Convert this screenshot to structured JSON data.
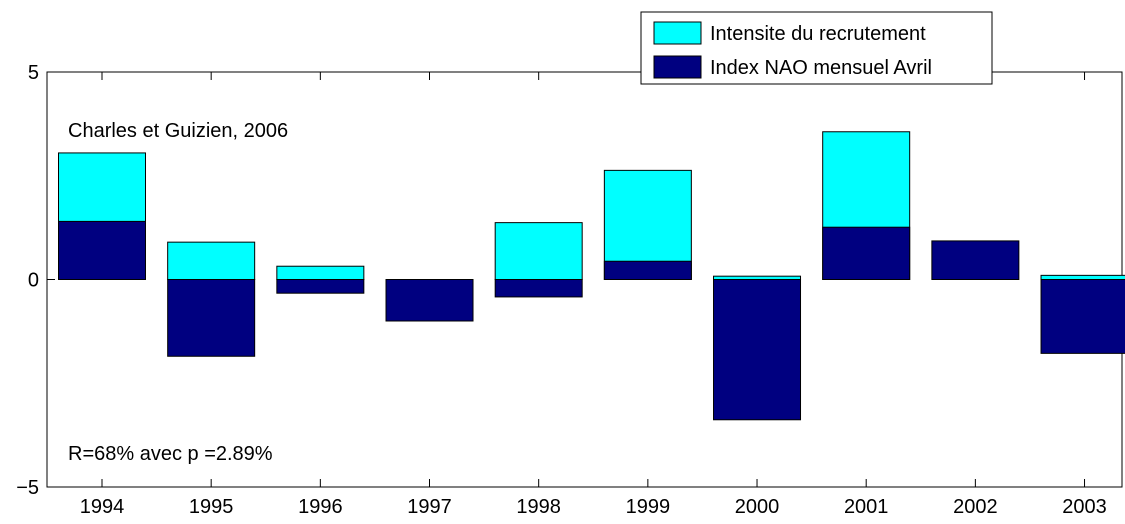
{
  "chart_data": {
    "type": "bar",
    "categories": [
      "1994",
      "1995",
      "1996",
      "1997",
      "1998",
      "1999",
      "2000",
      "2001",
      "2002",
      "2003"
    ],
    "series": [
      {
        "name": "Intensite du recrutement",
        "color": "#00ffff",
        "values": [
          3.05,
          0.9,
          0.32,
          0.0,
          1.37,
          2.63,
          0.08,
          3.56,
          0.0,
          0.1
        ]
      },
      {
        "name": "Index NAO mensuel Avril",
        "color": "#000080",
        "values": [
          1.4,
          -1.85,
          -0.33,
          -1.0,
          -0.42,
          0.44,
          -3.38,
          1.26,
          0.93,
          -1.78
        ]
      }
    ],
    "ylim": [
      -5,
      5
    ],
    "yticks": [
      -5,
      0,
      5
    ],
    "legend_position": "top-right",
    "grid": false,
    "annotations": [
      {
        "id": "citation",
        "text": "Charles et Guizien, 2006"
      },
      {
        "id": "stats",
        "text": "R=68% avec p =2.89%"
      }
    ]
  }
}
